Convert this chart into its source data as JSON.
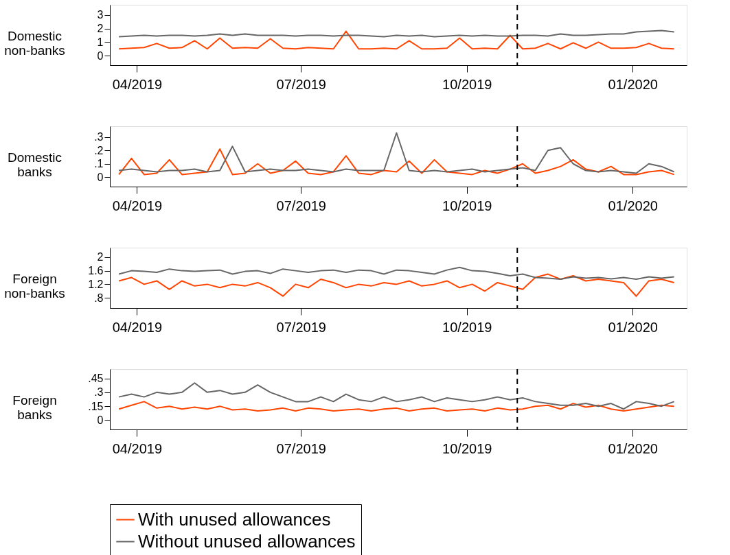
{
  "chart_data": [
    {
      "type": "line",
      "ylabel": "Domestic non-banks",
      "legend": "bottom",
      "x": [
        "2019-03-22",
        "2019-03-29",
        "2019-04-05",
        "2019-04-12",
        "2019-04-19",
        "2019-04-26",
        "2019-05-03",
        "2019-05-10",
        "2019-05-17",
        "2019-05-24",
        "2019-05-31",
        "2019-06-07",
        "2019-06-14",
        "2019-06-21",
        "2019-06-28",
        "2019-07-05",
        "2019-07-12",
        "2019-07-19",
        "2019-07-26",
        "2019-08-02",
        "2019-08-09",
        "2019-08-16",
        "2019-08-23",
        "2019-08-30",
        "2019-09-06",
        "2019-09-13",
        "2019-09-20",
        "2019-09-27",
        "2019-10-04",
        "2019-10-11",
        "2019-10-18",
        "2019-10-25",
        "2019-11-01",
        "2019-11-08",
        "2019-11-15",
        "2019-11-22",
        "2019-11-29",
        "2019-12-06",
        "2019-12-13",
        "2019-12-20",
        "2019-12-27",
        "2020-01-03",
        "2020-01-10",
        "2020-01-17",
        "2020-01-24"
      ],
      "series": [
        {
          "name": "With unused allowances",
          "color": "#ff4500",
          "values": [
            0.5,
            0.55,
            0.6,
            0.9,
            0.55,
            0.6,
            1.1,
            0.5,
            1.3,
            0.55,
            0.6,
            0.55,
            1.25,
            0.55,
            0.5,
            0.6,
            0.55,
            0.5,
            1.8,
            0.5,
            0.5,
            0.55,
            0.5,
            1.1,
            0.5,
            0.5,
            0.55,
            1.3,
            0.5,
            0.55,
            0.5,
            1.5,
            0.5,
            0.55,
            0.9,
            0.5,
            0.95,
            0.55,
            1.0,
            0.55,
            0.55,
            0.6,
            0.9,
            0.55,
            0.5
          ]
        },
        {
          "name": "Without unused allowances",
          "color": "#666666",
          "values": [
            1.4,
            1.45,
            1.5,
            1.45,
            1.5,
            1.5,
            1.45,
            1.5,
            1.6,
            1.5,
            1.6,
            1.5,
            1.5,
            1.5,
            1.45,
            1.5,
            1.5,
            1.45,
            1.5,
            1.5,
            1.45,
            1.4,
            1.5,
            1.45,
            1.5,
            1.4,
            1.45,
            1.5,
            1.45,
            1.5,
            1.45,
            1.45,
            1.5,
            1.5,
            1.45,
            1.6,
            1.5,
            1.5,
            1.55,
            1.6,
            1.6,
            1.75,
            1.8,
            1.85,
            1.75
          ]
        }
      ],
      "xlim": [
        "2019-03-17",
        "2020-01-31"
      ],
      "xticks": [
        {
          "value": "2019-04-01",
          "label": "04/2019"
        },
        {
          "value": "2019-07-01",
          "label": "07/2019"
        },
        {
          "value": "2019-10-01",
          "label": "10/2019"
        },
        {
          "value": "2020-01-01",
          "label": "01/2020"
        }
      ],
      "ylim": [
        -0.7,
        3.75
      ],
      "yticks": [
        0,
        1,
        2,
        3
      ],
      "ref_lines": [
        {
          "axis": "x",
          "value": "2019-10-29",
          "color": "#000000",
          "line_style": "dashed"
        }
      ]
    },
    {
      "type": "line",
      "ylabel": "Domestic banks",
      "legend": false,
      "x": [
        "2019-03-22",
        "2019-03-29",
        "2019-04-05",
        "2019-04-12",
        "2019-04-19",
        "2019-04-26",
        "2019-05-03",
        "2019-05-10",
        "2019-05-17",
        "2019-05-24",
        "2019-05-31",
        "2019-06-07",
        "2019-06-14",
        "2019-06-21",
        "2019-06-28",
        "2019-07-05",
        "2019-07-12",
        "2019-07-19",
        "2019-07-26",
        "2019-08-02",
        "2019-08-09",
        "2019-08-16",
        "2019-08-23",
        "2019-08-30",
        "2019-09-06",
        "2019-09-13",
        "2019-09-20",
        "2019-09-27",
        "2019-10-04",
        "2019-10-11",
        "2019-10-18",
        "2019-10-25",
        "2019-11-01",
        "2019-11-08",
        "2019-11-15",
        "2019-11-22",
        "2019-11-29",
        "2019-12-06",
        "2019-12-13",
        "2019-12-20",
        "2019-12-27",
        "2020-01-03",
        "2020-01-10",
        "2020-01-17",
        "2020-01-24"
      ],
      "series": [
        {
          "color": "#ff4500",
          "values": [
            0.02,
            0.14,
            0.02,
            0.03,
            0.13,
            0.02,
            0.03,
            0.04,
            0.21,
            0.02,
            0.03,
            0.1,
            0.03,
            0.05,
            0.12,
            0.03,
            0.02,
            0.04,
            0.16,
            0.03,
            0.02,
            0.05,
            0.04,
            0.12,
            0.03,
            0.13,
            0.04,
            0.03,
            0.02,
            0.05,
            0.03,
            0.06,
            0.1,
            0.03,
            0.05,
            0.08,
            0.13,
            0.06,
            0.04,
            0.08,
            0.02,
            0.02,
            0.04,
            0.05,
            0.02
          ]
        },
        {
          "color": "#666666",
          "values": [
            0.05,
            0.06,
            0.05,
            0.04,
            0.05,
            0.05,
            0.06,
            0.04,
            0.05,
            0.23,
            0.04,
            0.05,
            0.06,
            0.05,
            0.05,
            0.06,
            0.05,
            0.04,
            0.06,
            0.05,
            0.05,
            0.05,
            0.33,
            0.05,
            0.04,
            0.05,
            0.04,
            0.05,
            0.06,
            0.04,
            0.05,
            0.06,
            0.07,
            0.05,
            0.2,
            0.22,
            0.1,
            0.05,
            0.04,
            0.05,
            0.04,
            0.03,
            0.1,
            0.08,
            0.04
          ]
        }
      ],
      "xlim": [
        "2019-03-17",
        "2020-01-31"
      ],
      "xticks": [
        {
          "value": "2019-04-01",
          "label": "04/2019"
        },
        {
          "value": "2019-07-01",
          "label": "07/2019"
        },
        {
          "value": "2019-10-01",
          "label": "10/2019"
        },
        {
          "value": "2020-01-01",
          "label": "01/2020"
        }
      ],
      "ylim": [
        -0.07,
        0.38
      ],
      "yticks": [
        0,
        {
          "value": 0.1,
          "label": ".1"
        },
        {
          "value": 0.2,
          "label": ".2"
        },
        {
          "value": 0.3,
          "label": ".3"
        }
      ],
      "ref_lines": [
        {
          "axis": "x",
          "value": "2019-10-29",
          "color": "#000000",
          "line_style": "dashed"
        }
      ]
    },
    {
      "type": "line",
      "ylabel": "Foreign non-banks",
      "legend": false,
      "x": [
        "2019-03-22",
        "2019-03-29",
        "2019-04-05",
        "2019-04-12",
        "2019-04-19",
        "2019-04-26",
        "2019-05-03",
        "2019-05-10",
        "2019-05-17",
        "2019-05-24",
        "2019-05-31",
        "2019-06-07",
        "2019-06-14",
        "2019-06-21",
        "2019-06-28",
        "2019-07-05",
        "2019-07-12",
        "2019-07-19",
        "2019-07-26",
        "2019-08-02",
        "2019-08-09",
        "2019-08-16",
        "2019-08-23",
        "2019-08-30",
        "2019-09-06",
        "2019-09-13",
        "2019-09-20",
        "2019-09-27",
        "2019-10-04",
        "2019-10-11",
        "2019-10-18",
        "2019-10-25",
        "2019-11-01",
        "2019-11-08",
        "2019-11-15",
        "2019-11-22",
        "2019-11-29",
        "2019-12-06",
        "2019-12-13",
        "2019-12-20",
        "2019-12-27",
        "2020-01-03",
        "2020-01-10",
        "2020-01-17",
        "2020-01-24"
      ],
      "series": [
        {
          "color": "#ff4500",
          "values": [
            1.3,
            1.4,
            1.2,
            1.3,
            1.05,
            1.3,
            1.15,
            1.2,
            1.1,
            1.2,
            1.15,
            1.25,
            1.1,
            0.85,
            1.2,
            1.1,
            1.35,
            1.25,
            1.1,
            1.2,
            1.15,
            1.25,
            1.2,
            1.3,
            1.15,
            1.2,
            1.3,
            1.1,
            1.2,
            1.0,
            1.25,
            1.15,
            1.05,
            1.4,
            1.5,
            1.35,
            1.45,
            1.3,
            1.35,
            1.3,
            1.25,
            0.85,
            1.3,
            1.35,
            1.25
          ]
        },
        {
          "color": "#666666",
          "values": [
            1.5,
            1.6,
            1.58,
            1.55,
            1.65,
            1.6,
            1.58,
            1.6,
            1.62,
            1.5,
            1.58,
            1.6,
            1.52,
            1.65,
            1.6,
            1.55,
            1.6,
            1.62,
            1.55,
            1.62,
            1.6,
            1.5,
            1.62,
            1.6,
            1.55,
            1.5,
            1.62,
            1.7,
            1.6,
            1.58,
            1.52,
            1.45,
            1.5,
            1.4,
            1.38,
            1.35,
            1.42,
            1.38,
            1.4,
            1.36,
            1.4,
            1.35,
            1.42,
            1.38,
            1.42
          ]
        }
      ],
      "xlim": [
        "2019-03-17",
        "2020-01-31"
      ],
      "xticks": [
        {
          "value": "2019-04-01",
          "label": "04/2019"
        },
        {
          "value": "2019-07-01",
          "label": "07/2019"
        },
        {
          "value": "2019-10-01",
          "label": "10/2019"
        },
        {
          "value": "2020-01-01",
          "label": "01/2020"
        }
      ],
      "ylim": [
        0.5,
        2.28
      ],
      "yticks": [
        {
          "value": 0.8,
          "label": ".8"
        },
        1.2,
        1.6,
        2
      ],
      "ref_lines": [
        {
          "axis": "x",
          "value": "2019-10-29",
          "color": "#000000",
          "line_style": "dashed"
        }
      ]
    },
    {
      "type": "line",
      "ylabel": "Foreign banks",
      "legend": false,
      "x": [
        "2019-03-22",
        "2019-03-29",
        "2019-04-05",
        "2019-04-12",
        "2019-04-19",
        "2019-04-26",
        "2019-05-03",
        "2019-05-10",
        "2019-05-17",
        "2019-05-24",
        "2019-05-31",
        "2019-06-07",
        "2019-06-14",
        "2019-06-21",
        "2019-06-28",
        "2019-07-05",
        "2019-07-12",
        "2019-07-19",
        "2019-07-26",
        "2019-08-02",
        "2019-08-09",
        "2019-08-16",
        "2019-08-23",
        "2019-08-30",
        "2019-09-06",
        "2019-09-13",
        "2019-09-20",
        "2019-09-27",
        "2019-10-04",
        "2019-10-11",
        "2019-10-18",
        "2019-10-25",
        "2019-11-01",
        "2019-11-08",
        "2019-11-15",
        "2019-11-22",
        "2019-11-29",
        "2019-12-06",
        "2019-12-13",
        "2019-12-20",
        "2019-12-27",
        "2020-01-03",
        "2020-01-10",
        "2020-01-17",
        "2020-01-24"
      ],
      "series": [
        {
          "color": "#ff4500",
          "values": [
            0.12,
            0.16,
            0.2,
            0.13,
            0.15,
            0.12,
            0.14,
            0.12,
            0.15,
            0.11,
            0.12,
            0.1,
            0.11,
            0.13,
            0.1,
            0.13,
            0.12,
            0.1,
            0.11,
            0.12,
            0.1,
            0.12,
            0.13,
            0.1,
            0.12,
            0.13,
            0.1,
            0.11,
            0.12,
            0.1,
            0.13,
            0.11,
            0.12,
            0.15,
            0.16,
            0.12,
            0.18,
            0.14,
            0.16,
            0.12,
            0.1,
            0.12,
            0.14,
            0.16,
            0.15
          ]
        },
        {
          "color": "#666666",
          "values": [
            0.25,
            0.28,
            0.25,
            0.3,
            0.28,
            0.3,
            0.4,
            0.3,
            0.32,
            0.28,
            0.3,
            0.38,
            0.3,
            0.25,
            0.2,
            0.2,
            0.25,
            0.2,
            0.28,
            0.22,
            0.2,
            0.25,
            0.2,
            0.22,
            0.25,
            0.2,
            0.24,
            0.22,
            0.2,
            0.22,
            0.25,
            0.22,
            0.24,
            0.2,
            0.18,
            0.16,
            0.16,
            0.18,
            0.15,
            0.18,
            0.12,
            0.2,
            0.18,
            0.15,
            0.2
          ]
        }
      ],
      "xlim": [
        "2019-03-17",
        "2020-01-31"
      ],
      "xticks": [
        {
          "value": "2019-04-01",
          "label": "04/2019"
        },
        {
          "value": "2019-07-01",
          "label": "07/2019"
        },
        {
          "value": "2019-10-01",
          "label": "10/2019"
        },
        {
          "value": "2020-01-01",
          "label": "01/2020"
        }
      ],
      "ylim": [
        -0.1,
        0.55
      ],
      "yticks": [
        0,
        {
          "value": 0.15,
          "label": ".15"
        },
        {
          "value": 0.3,
          "label": ".3"
        },
        {
          "value": 0.45,
          "label": ".45"
        }
      ],
      "ref_lines": [
        {
          "axis": "x",
          "value": "2019-10-29",
          "color": "#000000",
          "line_style": "dashed"
        }
      ]
    }
  ]
}
